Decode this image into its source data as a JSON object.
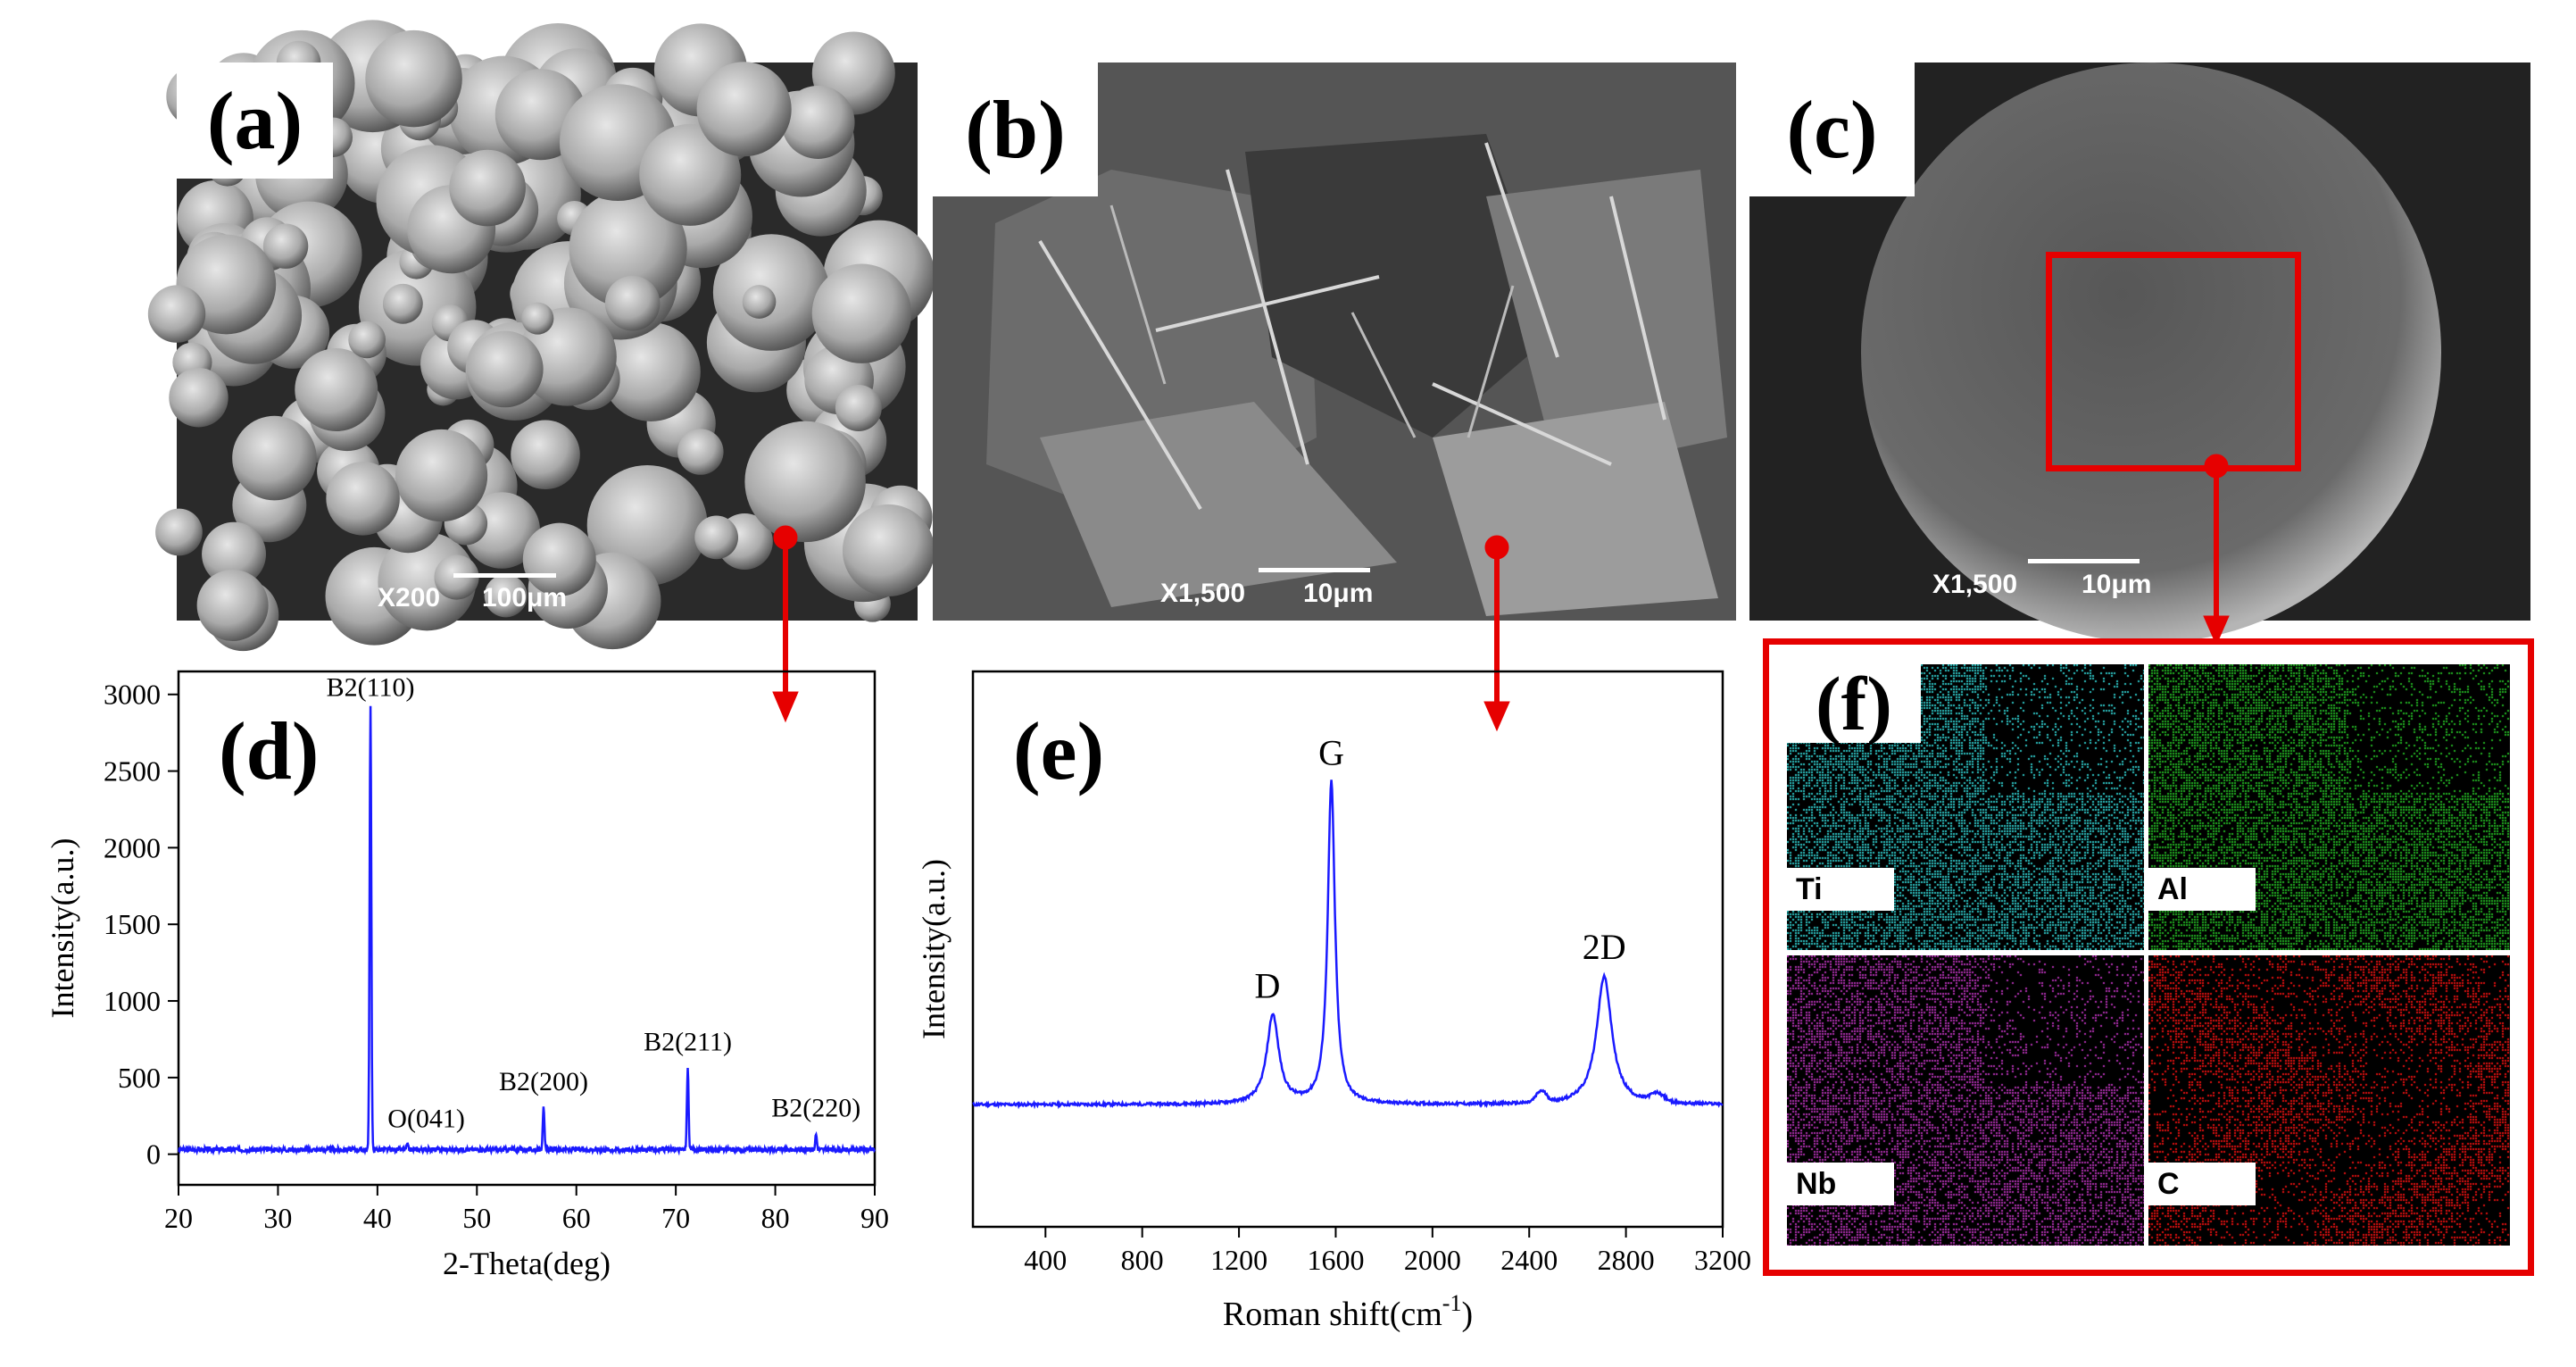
{
  "panels": {
    "a": {
      "label": "(a)",
      "magnification": "X200",
      "scale": "100μm"
    },
    "b": {
      "label": "(b)",
      "magnification": "X1,500",
      "scale": "10μm"
    },
    "c": {
      "label": "(c)",
      "magnification": "X1,500",
      "scale": "10μm"
    },
    "f": {
      "label": "(f)",
      "elements": [
        "Ti",
        "Al",
        "Nb",
        "C"
      ]
    }
  },
  "colors": {
    "arrow": "#e60000",
    "line": "#1a1aff",
    "ti": "#2ec5c5",
    "al": "#22b022",
    "nb": "#b030b0",
    "c": "#e01010"
  },
  "chart_data": [
    {
      "type": "line",
      "label": "(d)",
      "title": "",
      "xlabel": "2-Theta(deg)",
      "ylabel": "Intensity(a.u.)",
      "xlim": [
        20,
        90
      ],
      "ylim": [
        -200,
        3150
      ],
      "xticks": [
        "20",
        "30",
        "40",
        "50",
        "60",
        "70",
        "80",
        "90"
      ],
      "yticks": [
        "0",
        "500",
        "1000",
        "1500",
        "2000",
        "2500",
        "3000"
      ],
      "peaks": [
        {
          "x": 39.3,
          "y": 2920,
          "label": "B2(110)"
        },
        {
          "x": 43.0,
          "y": 60,
          "label": "O(041)"
        },
        {
          "x": 56.7,
          "y": 300,
          "label": "B2(200)"
        },
        {
          "x": 71.2,
          "y": 560,
          "label": "B2(211)"
        },
        {
          "x": 84.1,
          "y": 130,
          "label": "B2(220)"
        }
      ],
      "baseline": 30
    },
    {
      "type": "line",
      "label": "(e)",
      "title": "",
      "xlabel": "Roman shift(cm",
      "xlabel_sup": "-1",
      "xlabel_end": ")",
      "ylabel": "Intensity(a.u.)",
      "xlim": [
        100,
        3200
      ],
      "ylim": [
        0,
        1
      ],
      "xticks": [
        "400",
        "800",
        "1200",
        "1600",
        "2000",
        "2400",
        "2800",
        "3200"
      ],
      "peaks": [
        {
          "x": 1340,
          "y": 0.38,
          "label": "D"
        },
        {
          "x": 1582,
          "y": 0.8,
          "label": "G"
        },
        {
          "x": 2710,
          "y": 0.45,
          "label": "2D"
        }
      ],
      "baseline": 0.22
    }
  ]
}
